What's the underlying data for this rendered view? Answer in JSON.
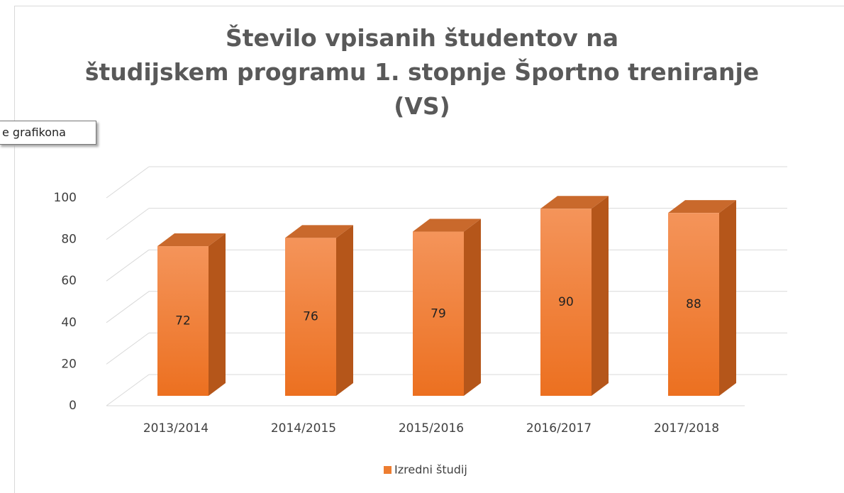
{
  "chart_data": {
    "type": "bar3d",
    "title": "Število vpisanih študentov na\nštudijskem programu 1. stopnje Športno treniranje\n(VS)",
    "tooltip": "e grafikona",
    "categories": [
      "2013/2014",
      "2014/2015",
      "2015/2016",
      "2016/2017",
      "2017/2018"
    ],
    "series": [
      {
        "name": "Izredni študij",
        "color": "#ED7D31",
        "values": [
          72,
          76,
          79,
          90,
          88
        ]
      }
    ],
    "ylim": [
      0,
      100
    ],
    "yticks": [
      0,
      20,
      40,
      60,
      80,
      100
    ],
    "grid": true,
    "legend": "bottom"
  }
}
